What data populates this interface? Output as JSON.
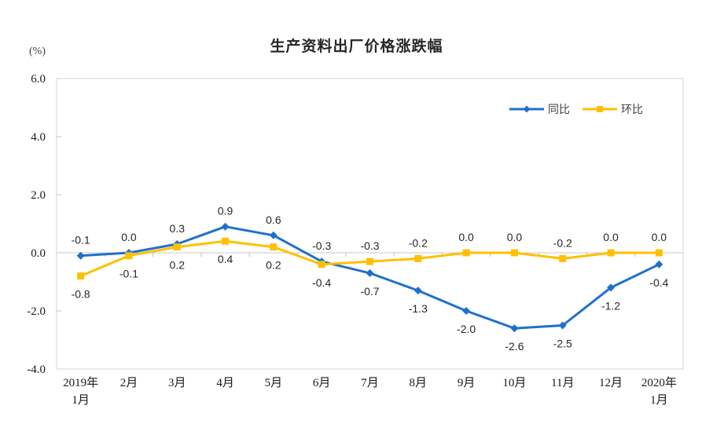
{
  "header": {
    "title": "生产资料出厂价格涨跌幅",
    "unit_label": "(%)"
  },
  "colors": {
    "series_tongbi": "#1F70CC",
    "series_huanbi": "#FFC000",
    "plot_border": "#D6D6D6",
    "zero_line": "#C9C9C9",
    "tick": "#BFBFBF",
    "axis_text": "#1a1a1a",
    "data_label_text": "#262626",
    "legend_text": "#404040"
  },
  "chart_data": {
    "type": "line",
    "title": "生产资料出厂价格涨跌幅",
    "unit": "(%)",
    "categories": [
      [
        "2019年",
        "1月"
      ],
      [
        "2月"
      ],
      [
        "3月"
      ],
      [
        "4月"
      ],
      [
        "5月"
      ],
      [
        "6月"
      ],
      [
        "7月"
      ],
      [
        "8月"
      ],
      [
        "9月"
      ],
      [
        "10月"
      ],
      [
        "11月"
      ],
      [
        "12月"
      ],
      [
        "2020年",
        "1月"
      ]
    ],
    "series": [
      {
        "name": "同比",
        "color": "#1F70CC",
        "marker": "diamond",
        "values": [
          -0.1,
          0.0,
          0.3,
          0.9,
          0.6,
          -0.3,
          -0.7,
          -1.3,
          -2.0,
          -2.6,
          -2.5,
          -1.2,
          -0.4
        ]
      },
      {
        "name": "环比",
        "color": "#FFC000",
        "marker": "square",
        "values": [
          -0.8,
          -0.1,
          0.2,
          0.4,
          0.2,
          -0.4,
          -0.3,
          -0.2,
          0.0,
          0.0,
          -0.2,
          0.0,
          0.0
        ]
      }
    ],
    "ylim": [
      -4.0,
      6.0
    ],
    "yticks": [
      "6.0",
      "4.0",
      "2.0",
      "0.0",
      "-2.0",
      "-4.0"
    ],
    "grid": false,
    "legend_position": "top-right",
    "data_labels": true
  }
}
